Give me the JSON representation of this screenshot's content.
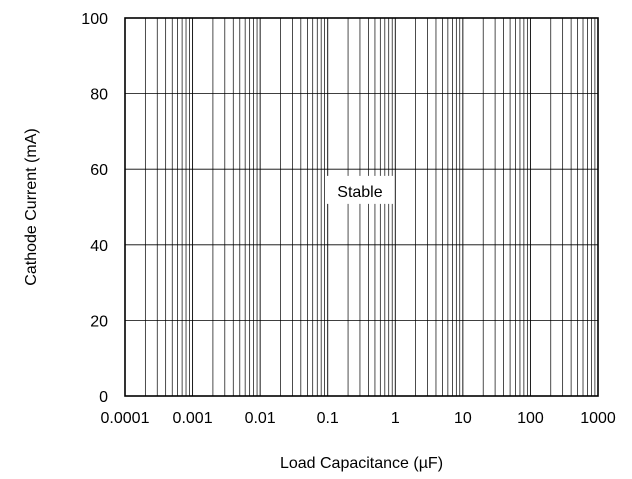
{
  "chart_data": {
    "type": "line",
    "title": "",
    "xlabel": "Load Capacitance (µF)",
    "ylabel": "Cathode Current (mA)",
    "x_scale": "log",
    "xlim": [
      0.0001,
      1000
    ],
    "ylim": [
      0,
      100
    ],
    "x_tick_labels": [
      "0.0001",
      "0.001",
      "0.01",
      "0.1",
      "1",
      "10",
      "100",
      "1000"
    ],
    "y_ticks": [
      0,
      20,
      40,
      60,
      80,
      100
    ],
    "grid": true,
    "series": [],
    "annotations": [
      {
        "text": "Stable",
        "x": 0.3,
        "y": 54
      }
    ]
  },
  "colors": {
    "grid": "#000000",
    "frame": "#000000",
    "background": "#ffffff"
  }
}
